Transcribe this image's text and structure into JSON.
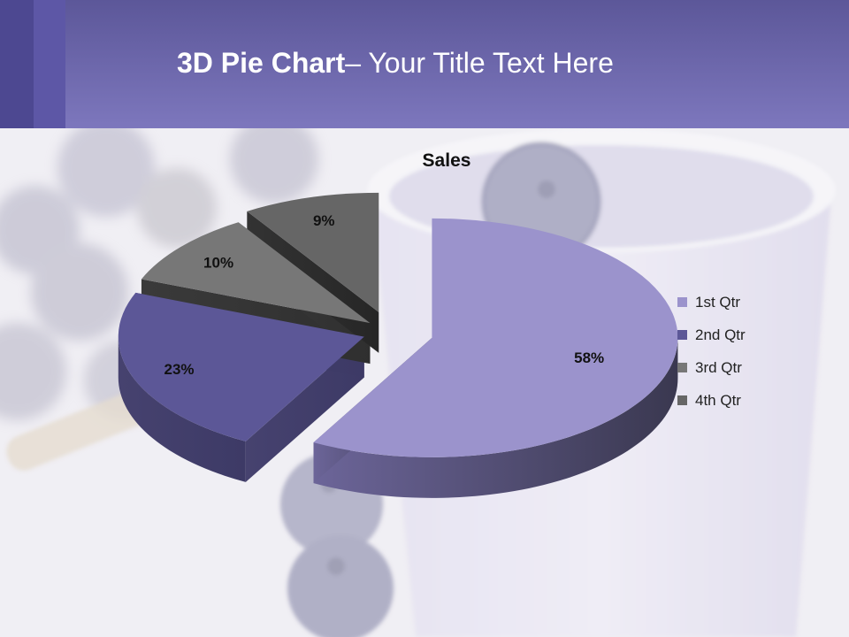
{
  "slide": {
    "title_bold": "3D Pie Chart",
    "title_rest": "– Your Title Text Here"
  },
  "colors": {
    "header": "#7d77bd",
    "header_dark": "#4d4891",
    "slice_1st": "#9b93cc",
    "slice_2nd": "#5c5797",
    "slice_3rd": "#777777",
    "slice_4th": "#666666"
  },
  "chart_data": {
    "type": "pie",
    "variant": "3d-exploded",
    "title": "Sales",
    "categories": [
      "1st Qtr",
      "2nd Qtr",
      "3rd Qtr",
      "4th Qtr"
    ],
    "values": [
      58,
      23,
      10,
      9
    ],
    "data_labels": [
      "58%",
      "23%",
      "10%",
      "9%"
    ],
    "legend_position": "right"
  }
}
